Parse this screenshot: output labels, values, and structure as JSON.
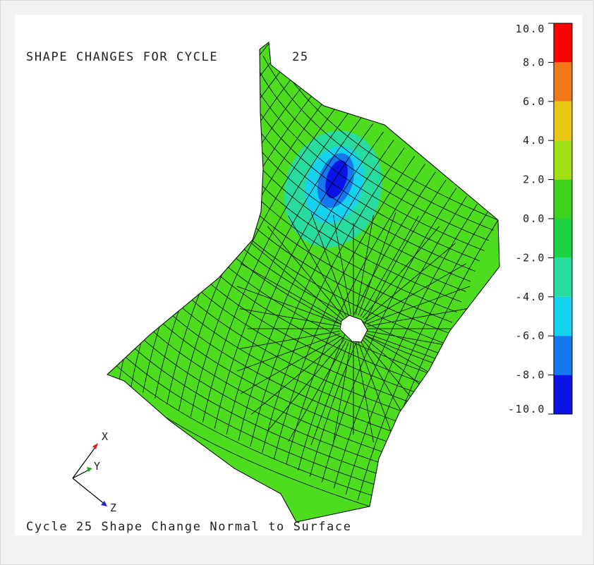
{
  "title": "SHAPE CHANGES FOR CYCLE",
  "cycle_number": "25",
  "caption": "Cycle 25 Shape Change Normal to Surface",
  "axes_triad": {
    "x_label": "X",
    "y_label": "Y",
    "z_label": "Z",
    "x_color": "#cc2222",
    "y_color": "#22aa22",
    "z_color": "#2222cc"
  },
  "legend": {
    "ticks": [
      "10.0",
      "8.0",
      "6.0",
      "4.0",
      "2.0",
      "0.0",
      "-2.0",
      "-4.0",
      "-6.0",
      "-8.0",
      "-10.0"
    ],
    "bands": [
      {
        "from": 10.0,
        "to": 8.0,
        "color": "#ff0000"
      },
      {
        "from": 8.0,
        "to": 6.0,
        "color": "#f07818"
      },
      {
        "from": 6.0,
        "to": 4.0,
        "color": "#e8c814"
      },
      {
        "from": 4.0,
        "to": 2.0,
        "color": "#a0e014"
      },
      {
        "from": 2.0,
        "to": 0.0,
        "color": "#3cd21e"
      },
      {
        "from": 0.0,
        "to": -2.0,
        "color": "#1ed246"
      },
      {
        "from": -2.0,
        "to": -4.0,
        "color": "#28dca0"
      },
      {
        "from": -4.0,
        "to": -6.0,
        "color": "#14d2f0"
      },
      {
        "from": -6.0,
        "to": -8.0,
        "color": "#1478f0"
      },
      {
        "from": -8.0,
        "to": -10.0,
        "color": "#0a14e6"
      }
    ]
  },
  "colors": {
    "surface": "#4ddc1e",
    "mesh_lines": "#000000",
    "depression_outer": "#28dca0",
    "depression_mid": "#14d2f0",
    "depression_inner": "#1478f0",
    "depression_core": "#0a14e6"
  }
}
